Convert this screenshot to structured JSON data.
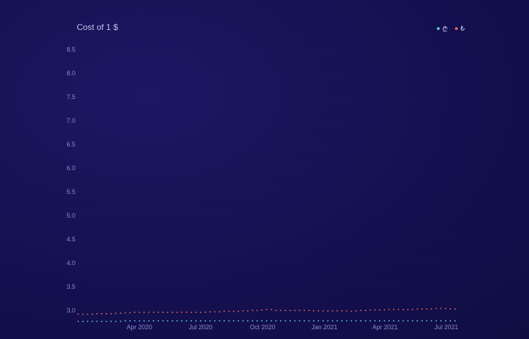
{
  "chart_data": {
    "type": "line",
    "title": "Cost of 1 $",
    "xlabel": "",
    "ylabel": "",
    "ylim": [
      2.75,
      8.6
    ],
    "grid": true,
    "legend_position": "top-right",
    "y_ticks": [
      "3.0",
      "3.5",
      "4.0",
      "4.5",
      "5.0",
      "5.5",
      "6.0",
      "6.5",
      "7.0",
      "7.5",
      "8.0",
      "8.5"
    ],
    "x_ticks": [
      {
        "label": "Apr 2020",
        "date": "2020-04-01"
      },
      {
        "label": "Jul 2020",
        "date": "2020-07-01"
      },
      {
        "label": "Oct 2020",
        "date": "2020-10-01"
      },
      {
        "label": "Jan 2021",
        "date": "2021-01-01"
      },
      {
        "label": "Apr 2021",
        "date": "2021-04-01"
      },
      {
        "label": "Jul 2021",
        "date": "2021-07-01"
      }
    ],
    "x": [
      "2020-01-01",
      "2020-01-08",
      "2020-01-15",
      "2020-01-22",
      "2020-01-29",
      "2020-02-05",
      "2020-02-12",
      "2020-02-19",
      "2020-02-26",
      "2020-03-04",
      "2020-03-11",
      "2020-03-18",
      "2020-03-25",
      "2020-04-01",
      "2020-04-08",
      "2020-04-15",
      "2020-04-22",
      "2020-04-29",
      "2020-05-06",
      "2020-05-13",
      "2020-05-20",
      "2020-05-27",
      "2020-06-03",
      "2020-06-10",
      "2020-06-17",
      "2020-06-24",
      "2020-07-01",
      "2020-07-08",
      "2020-07-15",
      "2020-07-22",
      "2020-07-29",
      "2020-08-05",
      "2020-08-12",
      "2020-08-19",
      "2020-08-26",
      "2020-09-02",
      "2020-09-09",
      "2020-09-16",
      "2020-09-23",
      "2020-09-30",
      "2020-10-07",
      "2020-10-14",
      "2020-10-21",
      "2020-10-28",
      "2020-11-04",
      "2020-11-11",
      "2020-11-18",
      "2020-11-25",
      "2020-12-02",
      "2020-12-09",
      "2020-12-16",
      "2020-12-23",
      "2020-12-30",
      "2021-01-06",
      "2021-01-13",
      "2021-01-20",
      "2021-01-27",
      "2021-02-03",
      "2021-02-10",
      "2021-02-17",
      "2021-02-24",
      "2021-03-03",
      "2021-03-10",
      "2021-03-17",
      "2021-03-24",
      "2021-03-31",
      "2021-04-07",
      "2021-04-14",
      "2021-04-21",
      "2021-04-28",
      "2021-05-05",
      "2021-05-12",
      "2021-05-19",
      "2021-05-26",
      "2021-06-02",
      "2021-06-09",
      "2021-06-16",
      "2021-06-23",
      "2021-06-30",
      "2021-07-07",
      "2021-07-14"
    ],
    "series": [
      {
        "name": "₾",
        "color": "#5ec6e8",
        "values": [
          2.77,
          2.77,
          2.77,
          2.77,
          2.77,
          2.77,
          2.77,
          2.77,
          2.77,
          2.77,
          2.78,
          2.78,
          2.78,
          2.78,
          2.78,
          2.78,
          2.78,
          2.78,
          2.78,
          2.78,
          2.78,
          2.78,
          2.78,
          2.78,
          2.78,
          2.78,
          2.78,
          2.78,
          2.78,
          2.78,
          2.78,
          2.78,
          2.78,
          2.78,
          2.78,
          2.78,
          2.78,
          2.78,
          2.78,
          2.78,
          2.78,
          2.78,
          2.78,
          2.78,
          2.78,
          2.78,
          2.78,
          2.78,
          2.78,
          2.78,
          2.78,
          2.78,
          2.78,
          2.78,
          2.78,
          2.78,
          2.78,
          2.78,
          2.78,
          2.78,
          2.78,
          2.78,
          2.78,
          2.78,
          2.78,
          2.78,
          2.78,
          2.78,
          2.78,
          2.78,
          2.78,
          2.78,
          2.78,
          2.78,
          2.78,
          2.78,
          2.78,
          2.78,
          2.78,
          2.78,
          2.78
        ]
      },
      {
        "name": "₺",
        "color": "#e8675c",
        "values": [
          2.92,
          2.92,
          2.92,
          2.92,
          2.93,
          2.93,
          2.93,
          2.93,
          2.94,
          2.94,
          2.95,
          2.95,
          2.96,
          2.96,
          2.96,
          2.96,
          2.96,
          2.96,
          2.96,
          2.96,
          2.96,
          2.96,
          2.96,
          2.96,
          2.96,
          2.96,
          2.96,
          2.96,
          2.97,
          2.97,
          2.97,
          2.98,
          2.98,
          2.98,
          2.98,
          2.99,
          2.99,
          3.0,
          3.0,
          3.01,
          3.02,
          3.02,
          3.0,
          3.0,
          3.0,
          3.0,
          3.0,
          3.0,
          3.0,
          3.0,
          2.99,
          2.99,
          2.99,
          2.99,
          2.99,
          2.99,
          2.99,
          2.99,
          2.98,
          2.99,
          3.0,
          3.0,
          3.01,
          3.01,
          3.01,
          3.01,
          3.02,
          3.02,
          3.02,
          3.02,
          3.02,
          3.02,
          3.03,
          3.03,
          3.03,
          3.03,
          3.04,
          3.04,
          3.04,
          3.03,
          3.03
        ]
      }
    ]
  }
}
